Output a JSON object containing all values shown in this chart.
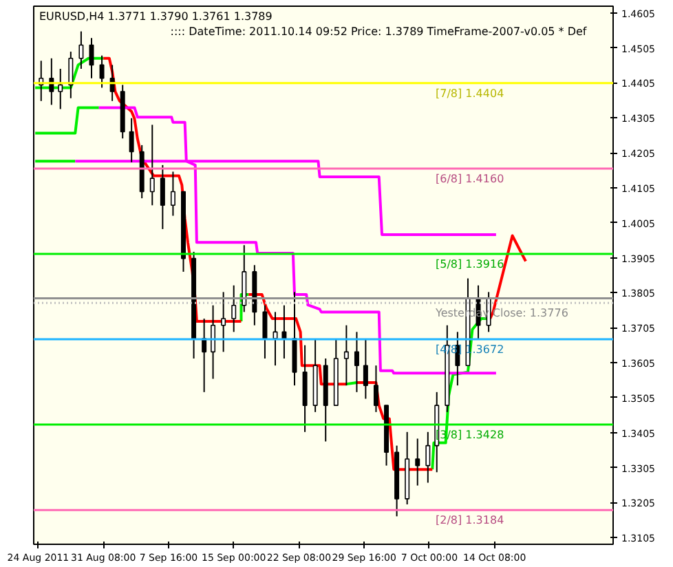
{
  "chart_data": {
    "type": "candlestick",
    "annotations": [
      "EURUSD,H4  1.3771 1.3790 1.3761 1.3789",
      ":::: DateTime: 2011.10.14 09:52   Price: 1.3789   TimeFrame-2007-v0.05   * Def"
    ],
    "x": [
      "2011-08-24T08:00",
      "2011-08-25T12:00",
      "2011-08-26T12:00",
      "2011-08-27T16:00",
      "2011-08-28T20:00",
      "2011-08-30T00:00",
      "2011-08-31T04:00",
      "2011-09-01T08:00",
      "2011-09-02T12:00",
      "2011-09-03T12:00",
      "2011-09-04T16:00",
      "2011-09-05T20:00",
      "2011-09-07T00:00",
      "2011-09-08T04:00",
      "2011-09-09T08:00",
      "2011-09-10T12:00",
      "2011-09-11T16:00",
      "2011-09-12T16:00",
      "2011-09-13T20:00",
      "2011-09-15T00:00",
      "2011-09-16T04:00",
      "2011-09-17T08:00",
      "2011-09-18T12:00",
      "2011-09-19T16:00",
      "2011-09-20T16:00",
      "2011-09-21T20:00",
      "2011-09-23T00:00",
      "2011-09-24T04:00",
      "2011-09-25T08:00",
      "2011-09-26T12:00",
      "2011-09-27T16:00",
      "2011-09-28T20:00",
      "2011-09-29T20:00",
      "2011-10-01T00:00",
      "2011-10-02T04:00",
      "2011-10-03T08:00",
      "2011-10-04T12:00",
      "2011-10-05T16:00",
      "2011-10-06T20:00",
      "2011-10-07T20:00",
      "2011-10-09T00:00",
      "2011-10-10T04:00",
      "2011-10-11T08:00",
      "2011-10-12T12:00",
      "2011-10-13T16:00"
    ],
    "ohlc": [
      [
        1.4399,
        1.4468,
        1.4353,
        1.4418
      ],
      [
        1.4418,
        1.4475,
        1.4342,
        1.438
      ],
      [
        1.438,
        1.4445,
        1.433,
        1.4399
      ],
      [
        1.4399,
        1.4494,
        1.4361,
        1.4475
      ],
      [
        1.4475,
        1.4552,
        1.4445,
        1.4513
      ],
      [
        1.4513,
        1.4533,
        1.4418,
        1.4456
      ],
      [
        1.4456,
        1.4483,
        1.4391,
        1.4418
      ],
      [
        1.4418,
        1.4456,
        1.4353,
        1.438
      ],
      [
        1.438,
        1.4399,
        1.4246,
        1.4265
      ],
      [
        1.4265,
        1.4304,
        1.4178,
        1.4208
      ],
      [
        1.4208,
        1.4227,
        1.4075,
        1.4094
      ],
      [
        1.4094,
        1.4285,
        1.4055,
        1.4132
      ],
      [
        1.4132,
        1.417,
        1.3987,
        1.4055
      ],
      [
        1.4055,
        1.4151,
        1.4025,
        1.4094
      ],
      [
        1.4094,
        1.4094,
        1.3865,
        1.3903
      ],
      [
        1.3903,
        1.3922,
        1.3617,
        1.3674
      ],
      [
        1.3674,
        1.3731,
        1.3521,
        1.3636
      ],
      [
        1.3636,
        1.3769,
        1.3559,
        1.3712
      ],
      [
        1.3712,
        1.3807,
        1.3636,
        1.3731
      ],
      [
        1.3731,
        1.3826,
        1.3693,
        1.3769
      ],
      [
        1.3769,
        1.3941,
        1.375,
        1.3865
      ],
      [
        1.3865,
        1.3884,
        1.3712,
        1.375
      ],
      [
        1.375,
        1.3769,
        1.3617,
        1.3674
      ],
      [
        1.3674,
        1.375,
        1.3597,
        1.3693
      ],
      [
        1.3693,
        1.3769,
        1.3617,
        1.3674
      ],
      [
        1.3674,
        1.3807,
        1.354,
        1.3578
      ],
      [
        1.3578,
        1.3655,
        1.3407,
        1.3483
      ],
      [
        1.3483,
        1.3674,
        1.3464,
        1.3597
      ],
      [
        1.3597,
        1.3617,
        1.338,
        1.3483
      ],
      [
        1.3483,
        1.3674,
        1.3483,
        1.3617
      ],
      [
        1.3617,
        1.3712,
        1.354,
        1.3636
      ],
      [
        1.3636,
        1.3693,
        1.3521,
        1.3597
      ],
      [
        1.3597,
        1.3674,
        1.3502,
        1.354
      ],
      [
        1.354,
        1.3597,
        1.3464,
        1.3483
      ],
      [
        1.3483,
        1.3483,
        1.3311,
        1.3349
      ],
      [
        1.3349,
        1.3368,
        1.3166,
        1.3216
      ],
      [
        1.3216,
        1.3407,
        1.32,
        1.333
      ],
      [
        1.333,
        1.3388,
        1.3254,
        1.3311
      ],
      [
        1.3311,
        1.3407,
        1.3262,
        1.3368
      ],
      [
        1.3368,
        1.3521,
        1.3292,
        1.3483
      ],
      [
        1.3483,
        1.3712,
        1.3464,
        1.3655
      ],
      [
        1.3655,
        1.3693,
        1.354,
        1.3597
      ],
      [
        1.3597,
        1.3846,
        1.3597,
        1.3788
      ],
      [
        1.3788,
        1.3826,
        1.3674,
        1.3712
      ],
      [
        1.3712,
        1.3807,
        1.3693,
        1.3789
      ]
    ],
    "series": [
      {
        "type": "line",
        "color": "#00ee00",
        "x": [
          "2011-08-23T16:00",
          "2011-08-27T16:00",
          "2011-08-28T12:00",
          "2011-08-29T16:00",
          "2011-08-31T08:00",
          "2011-08-31T12:00",
          "2011-09-15T20:00",
          "2011-09-15T20:00",
          "2011-09-16T16:00",
          "2011-09-16T20:00",
          "2011-09-27T16:00",
          "2011-09-28T20:00",
          "2011-09-29T00:00",
          "2011-10-07T08:00",
          "2011-10-07T12:00",
          "2011-10-08T20:00",
          "2011-10-09T04:00",
          "2011-10-09T16:00",
          "2011-10-11T08:00",
          "2011-10-11T20:00",
          "2011-10-12T20:00",
          "2011-10-13T20:00"
        ],
        "values": [
          1.4391,
          1.4391,
          1.4456,
          1.4475,
          1.4475,
          null,
          1.3723,
          1.38,
          1.38,
          null,
          1.3544,
          1.3548,
          null,
          1.33,
          1.3376,
          1.3376,
          1.351,
          1.3571,
          1.3578,
          1.37,
          1.3731,
          1.3731
        ]
      },
      {
        "type": "line",
        "color": "#ff0000",
        "x": [
          "2011-08-31T08:00",
          "2011-09-01T00:00",
          "2011-09-01T08:00",
          "2011-09-01T16:00",
          "2011-09-02T04:00",
          "2011-09-02T16:00",
          "2011-09-03T12:00",
          "2011-09-03T20:00",
          "2011-09-04T04:00",
          "2011-09-04T16:00",
          "2011-09-05T16:00",
          "2011-09-06T00:00",
          "2011-09-08T20:00",
          "2011-09-09T04:00",
          "2011-09-09T12:00",
          "2011-09-09T20:00",
          "2011-09-10T08:00",
          "2011-09-10T16:00",
          "2011-09-10T20:00",
          "2011-09-15T20:00",
          "2011-09-16T00:00",
          "2011-09-16T16:00",
          "2011-09-18T04:00",
          "2011-09-18T16:00",
          "2011-09-19T08:00",
          "2011-09-22T00:00",
          "2011-09-22T12:00",
          "2011-09-22T16:00",
          "2011-09-24T16:00",
          "2011-09-24T20:00",
          "2011-09-27T16:00",
          "2011-09-27T20:00",
          "2011-09-28T20:00",
          "2011-10-01T00:00",
          "2011-10-01T08:00",
          "2011-10-01T20:00",
          "2011-10-02T12:00",
          "2011-10-03T00:00",
          "2011-10-07T08:00",
          "2011-10-07T12:00",
          "2011-10-13T20:00",
          "2011-10-14T04:00",
          "2011-10-16T08:00",
          "2011-10-17T20:00"
        ],
        "values": [
          1.4475,
          1.4475,
          1.4437,
          1.438,
          1.4353,
          1.4342,
          1.4323,
          1.4303,
          1.4246,
          1.4189,
          1.4151,
          1.4139,
          1.4139,
          1.4113,
          1.4017,
          1.3949,
          1.3865,
          1.3788,
          1.3723,
          1.3723,
          null,
          1.38,
          1.38,
          1.3761,
          1.3731,
          1.3731,
          1.3693,
          1.3597,
          1.3597,
          1.3544,
          1.3544,
          null,
          1.3548,
          1.3548,
          1.3483,
          1.3445,
          1.3445,
          1.33,
          1.33,
          null,
          1.3731,
          1.375,
          1.3968,
          1.3895
        ]
      },
      {
        "type": "line",
        "color": "#00ee00",
        "x": [
          "2011-08-23T16:00",
          "2011-08-28T04:00",
          "2011-08-28T12:00",
          "2011-08-30T20:00"
        ],
        "values": [
          1.4261,
          1.4261,
          1.4334,
          1.4334
        ]
      },
      {
        "type": "line",
        "color": "#ff00ff",
        "x": [
          "2011-08-30T20:00",
          "2011-09-03T20:00",
          "2011-09-04T04:00",
          "2011-09-08T00:00",
          "2011-09-08T04:00",
          "2011-09-09T12:00",
          "2011-09-09T16:00",
          "2011-09-10T16:00",
          "2011-09-10T20:00",
          "2011-09-17T12:00",
          "2011-09-17T16:00",
          "2011-09-21T16:00",
          "2011-09-21T20:00",
          "2011-09-23T04:00",
          "2011-09-23T08:00",
          "2011-09-24T16:00",
          "2011-09-24T20:00",
          "2011-10-01T08:00",
          "2011-10-01T12:00",
          "2011-10-02T20:00",
          "2011-10-03T00:00",
          "2011-10-14T12:00"
        ],
        "values": [
          1.4334,
          1.4334,
          1.4307,
          1.4307,
          1.4292,
          1.4292,
          1.4181,
          1.417,
          1.3949,
          1.3949,
          1.3918,
          1.3918,
          1.38,
          1.38,
          1.377,
          1.3758,
          1.375,
          1.375,
          1.3582,
          1.3582,
          1.3575,
          1.3575
        ]
      },
      {
        "type": "line",
        "color": "#00ee00",
        "x": [
          "2011-08-23T16:00",
          "2011-08-28T04:00"
        ],
        "values": [
          1.4181,
          1.4181
        ]
      },
      {
        "type": "line",
        "color": "#ff00ff",
        "x": [
          "2011-08-28T04:00",
          "2011-09-24T12:00",
          "2011-09-24T16:00",
          "2011-10-01T08:00",
          "2011-10-01T16:00",
          "2011-10-14T12:00"
        ],
        "values": [
          1.4181,
          1.4181,
          1.4136,
          1.4136,
          1.3971,
          1.3971
        ]
      }
    ],
    "ref_lines": [
      {
        "axis": "y",
        "value": 1.4404,
        "label": "[7/8]      1.4404",
        "color": "#ffff00"
      },
      {
        "axis": "y",
        "value": 1.416,
        "label": "[6/8]      1.4160",
        "color": "#ff69b4"
      },
      {
        "axis": "y",
        "value": 1.3916,
        "label": "[5/8]      1.3916",
        "color": "#00ee00"
      },
      {
        "axis": "y",
        "value": 1.3789,
        "label": null,
        "color": "#909090"
      },
      {
        "axis": "y",
        "value": 1.3776,
        "label": "Yesterday Close: 1.3776",
        "color": "#c0c0c0",
        "line_style": "dotted"
      },
      {
        "axis": "y",
        "value": 1.3672,
        "label": "[4/8]      1.3672",
        "color": "#1eb4ff"
      },
      {
        "axis": "y",
        "value": 1.3428,
        "label": "[3/8]      1.3428",
        "color": "#00ee00"
      },
      {
        "axis": "y",
        "value": 1.3184,
        "label": "[2/8]      1.3184",
        "color": "#ff69b4"
      }
    ],
    "xlim": [
      "2011-08-23T12:00",
      "2011-10-27T16:00"
    ],
    "ylim": [
      1.3086,
      1.4624
    ],
    "xticks": [
      {
        "value": "2011-08-24",
        "label": "24 Aug 2011"
      },
      {
        "value": "2011-08-31T08:00",
        "label": "31 Aug 08:00"
      },
      {
        "value": "2011-09-07T16:00",
        "label": "7 Sep 16:00"
      },
      {
        "value": "2011-09-15T00:00",
        "label": "15 Sep 00:00"
      },
      {
        "value": "2011-09-22T08:00",
        "label": "22 Sep 08:00"
      },
      {
        "value": "2011-09-29T16:00",
        "label": "29 Sep 16:00"
      },
      {
        "value": "2011-10-07T00:00",
        "label": "7 Oct 00:00"
      },
      {
        "value": "2011-10-14T08:00",
        "label": "14 Oct 08:00"
      }
    ],
    "yticks": [
      1.4605,
      1.4505,
      1.4405,
      1.4305,
      1.4205,
      1.4105,
      1.4005,
      1.3905,
      1.3805,
      1.3705,
      1.3605,
      1.3505,
      1.3405,
      1.3305,
      1.3205,
      1.3105
    ],
    "grid": false
  }
}
